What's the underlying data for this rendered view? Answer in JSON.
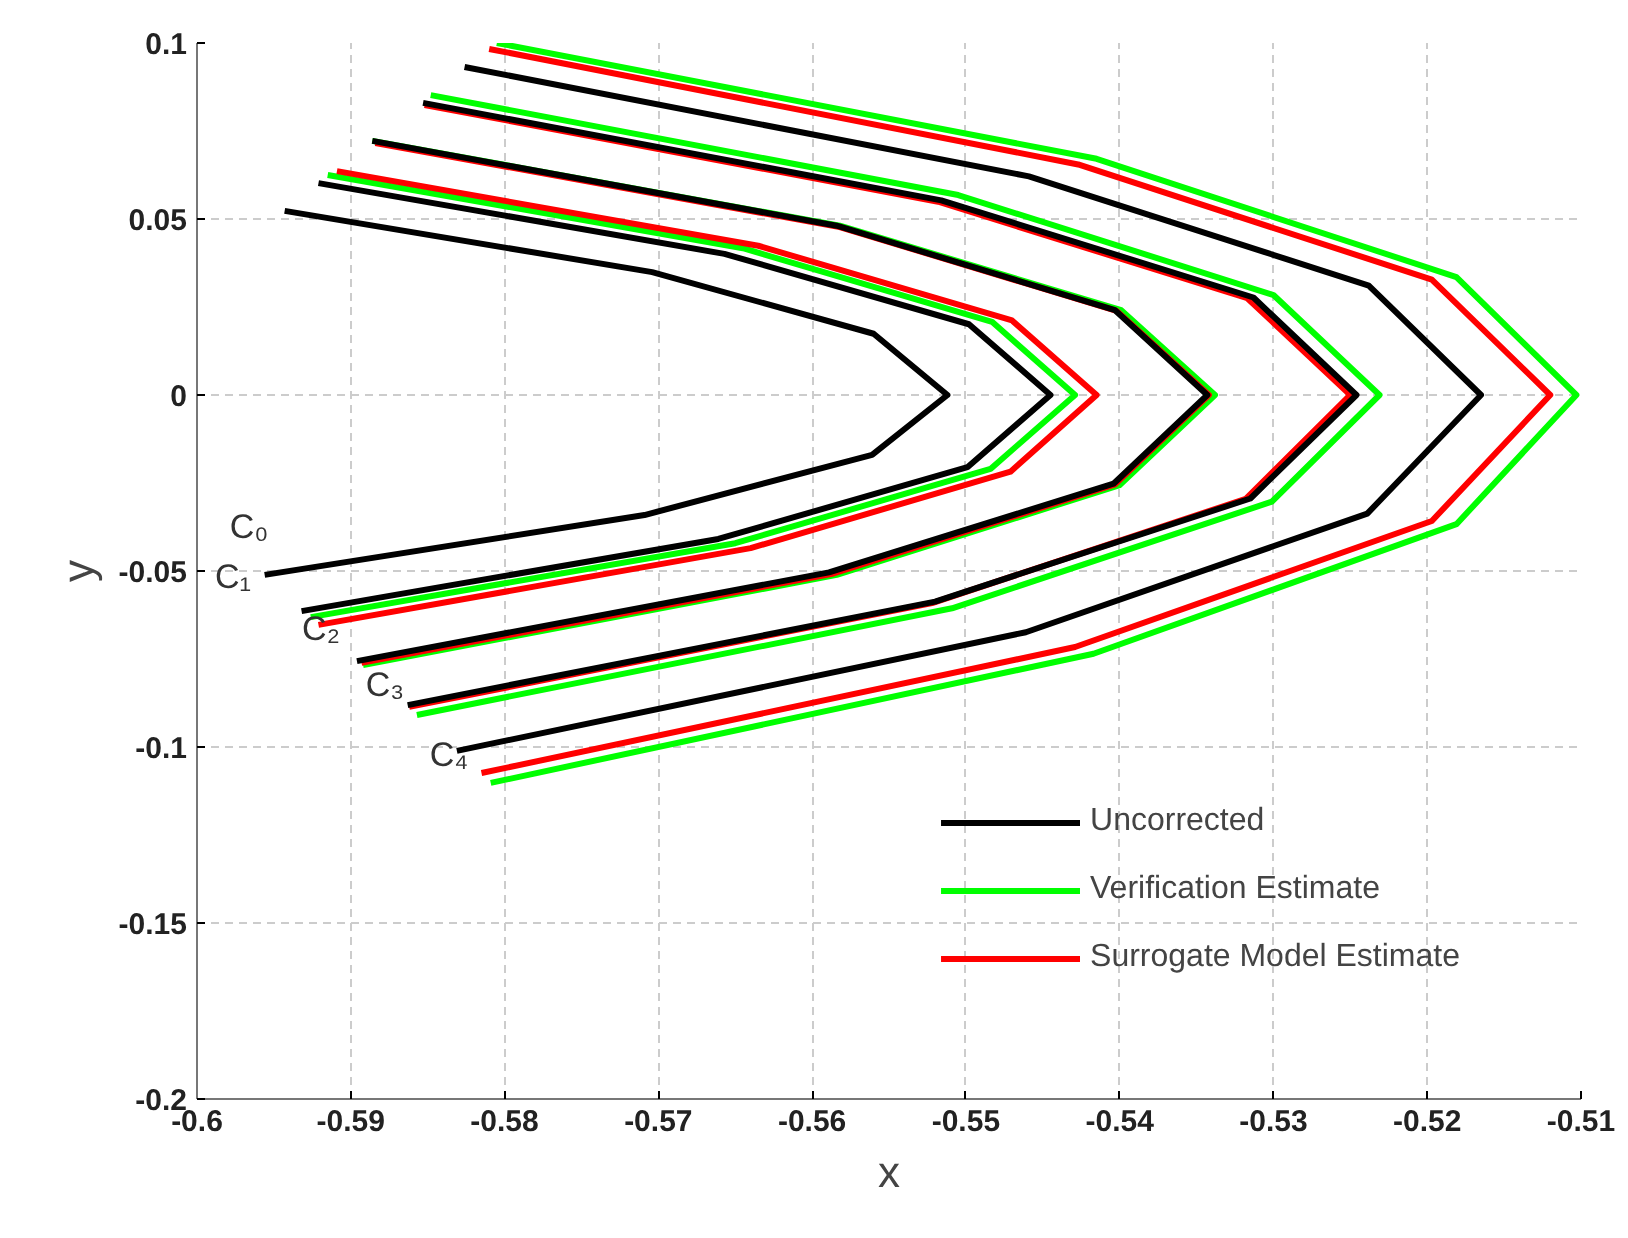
{
  "chart_data": {
    "type": "line",
    "xlabel": "x",
    "ylabel": "y",
    "xlim": [
      -0.6,
      -0.51
    ],
    "xticks": [
      -0.6,
      -0.59,
      -0.58,
      -0.57,
      -0.56,
      -0.55,
      -0.54,
      -0.53,
      -0.52,
      -0.51
    ],
    "ylim": [
      -0.2,
      0.1
    ],
    "yticks": [
      -0.2,
      -0.15,
      -0.1,
      -0.05,
      0,
      0.05,
      0.1
    ],
    "grid": true,
    "legend": "bottom right",
    "line_style": "solid",
    "series": [
      {
        "name": "Uncorrected",
        "color": "#000000",
        "x": [
          -0.5943,
          -0.5704,
          -0.556,
          -0.5512,
          -0.5561,
          -0.5709,
          -0.5956
        ],
        "values": [
          0.0523,
          0.0349,
          0.0174,
          0,
          -0.017,
          -0.0341,
          -0.0511
        ]
      },
      {
        "name": "Verification Estimate",
        "color": "#00ff00",
        "x": [
          -0.5915,
          -0.5645,
          -0.5483,
          -0.5429,
          -0.5484,
          -0.565,
          -0.5926
        ],
        "values": [
          0.0625,
          0.0417,
          0.0208,
          0,
          -0.021,
          -0.0421,
          -0.0631
        ]
      },
      {
        "name": "Surrogate Model Estimate",
        "color": "#ff0000",
        "x": [
          -0.5909,
          -0.5635,
          -0.547,
          -0.5415,
          -0.5471,
          -0.564,
          -0.5921
        ],
        "values": [
          0.0636,
          0.0424,
          0.0212,
          0,
          -0.0218,
          -0.0435,
          -0.0653
        ]
      },
      {
        "color": "#000000",
        "x": [
          -0.5921,
          -0.5657,
          -0.5498,
          -0.5445,
          -0.5499,
          -0.5661,
          -0.5932
        ],
        "values": [
          0.0602,
          0.0401,
          0.0201,
          0,
          -0.0205,
          -0.0409,
          -0.0614
        ]
      },
      {
        "color": "#00ff00",
        "x": [
          -0.5886,
          -0.5582,
          -0.5399,
          -0.5338,
          -0.54,
          -0.5584,
          -0.5892
        ],
        "values": [
          0.0722,
          0.0481,
          0.0241,
          0,
          -0.0256,
          -0.0511,
          -0.0767
        ]
      },
      {
        "color": "#ff0000",
        "x": [
          -0.5884,
          -0.5582,
          -0.5402,
          -0.5342,
          -0.5403,
          -0.5586,
          -0.5893
        ],
        "values": [
          0.0716,
          0.0477,
          0.0239,
          0,
          -0.0254,
          -0.0507,
          -0.0761
        ]
      },
      {
        "color": "#000000",
        "x": [
          -0.5886,
          -0.5584,
          -0.5403,
          -0.5343,
          -0.5404,
          -0.5589,
          -0.5896
        ],
        "values": [
          0.0722,
          0.0481,
          0.0241,
          0,
          -0.0252,
          -0.0504,
          -0.0756
        ]
      },
      {
        "color": "#00ff00",
        "x": [
          -0.5848,
          -0.5505,
          -0.53,
          -0.5231,
          -0.5301,
          -0.5509,
          -0.5857
        ],
        "values": [
          0.0852,
          0.0568,
          0.0284,
          0,
          -0.0303,
          -0.0606,
          -0.0909
        ]
      },
      {
        "color": "#ff0000",
        "x": [
          -0.5852,
          -0.5518,
          -0.5317,
          -0.525,
          -0.5318,
          -0.5522,
          -0.5862
        ],
        "values": [
          0.0824,
          0.0549,
          0.0275,
          0,
          -0.0295,
          -0.0591,
          -0.0886
        ]
      },
      {
        "color": "#000000",
        "x": [
          -0.5853,
          -0.5516,
          -0.5313,
          -0.5246,
          -0.5315,
          -0.552,
          -0.5863
        ],
        "values": [
          0.083,
          0.0553,
          0.0277,
          0,
          -0.0294,
          -0.0587,
          -0.0881
        ]
      },
      {
        "color": "#00ff00",
        "x": [
          -0.5805,
          -0.5415,
          -0.5181,
          -0.5103,
          -0.5181,
          -0.5417,
          -0.5809
        ],
        "values": [
          0.1,
          0.0671,
          0.0335,
          0,
          -0.0367,
          -0.0735,
          -0.1102
        ]
      },
      {
        "color": "#ff0000",
        "x": [
          -0.581,
          -0.5427,
          -0.5197,
          -0.512,
          -0.5197,
          -0.5429,
          -0.5815
        ],
        "values": [
          0.0983,
          0.0655,
          0.0328,
          0,
          -0.0358,
          -0.0716,
          -0.1074
        ]
      },
      {
        "color": "#000000",
        "x": [
          -0.5826,
          -0.5459,
          -0.5238,
          -0.5165,
          -0.5239,
          -0.5461,
          -0.5831
        ],
        "values": [
          0.0932,
          0.0621,
          0.0311,
          0,
          -0.0337,
          -0.0674,
          -0.1011
        ]
      }
    ],
    "annotations": [
      "C₀",
      "C₁",
      "C₂",
      "C₃",
      "C₄"
    ]
  }
}
